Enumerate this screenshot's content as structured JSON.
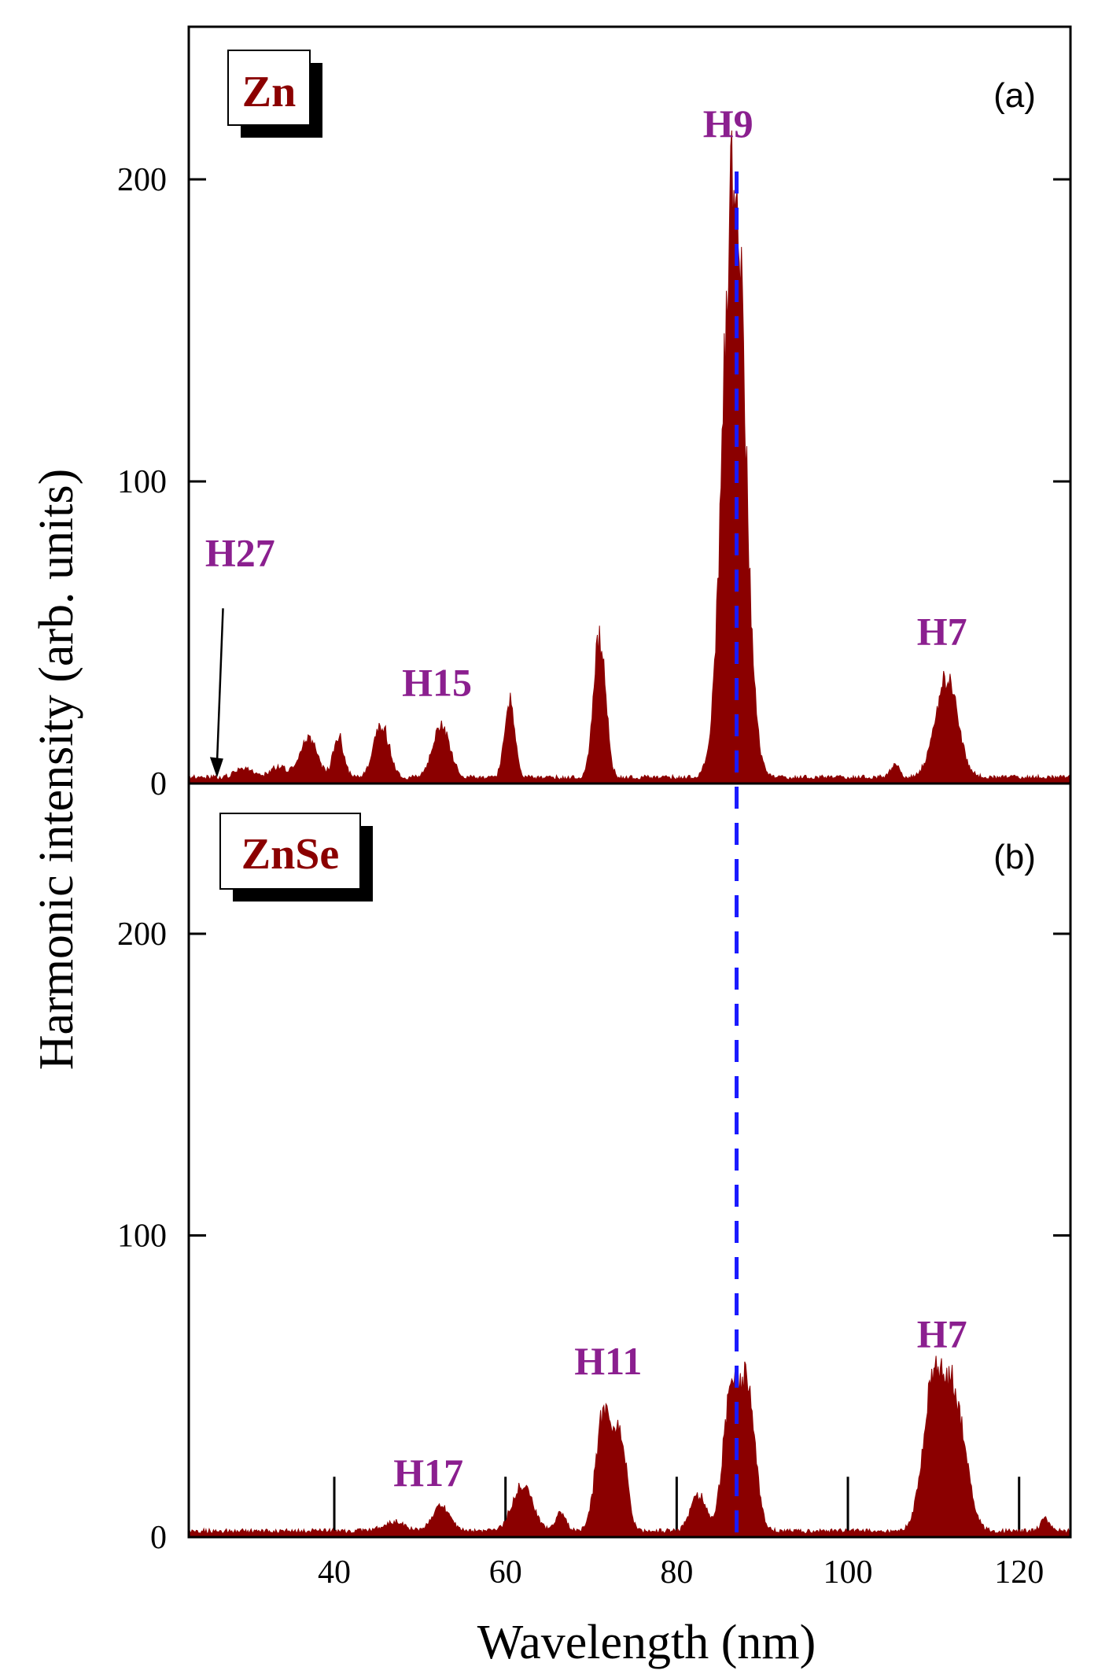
{
  "chart_data": {
    "type": "area",
    "xlabel": "Wavelength (nm)",
    "ylabel": "Harmonic intensity (arb. units)",
    "xlim": [
      23,
      126
    ],
    "x_ticks": [
      "40",
      "60",
      "80",
      "100",
      "120"
    ],
    "x_tick_values": [
      40,
      60,
      80,
      100,
      120
    ],
    "reference_line": {
      "x": 87,
      "style": "dashed",
      "color": "#1a1aff"
    },
    "fill_color": "#8b0000",
    "panels": [
      {
        "id": "a",
        "panel_letter": "(a)",
        "material": "Zn",
        "ylim": [
          0,
          250
        ],
        "y_ticks": [
          "0",
          "100",
          "200"
        ],
        "y_tick_values": [
          0,
          100,
          200
        ],
        "peaks": [
          {
            "x": 29.5,
            "height": 3,
            "width": 1.0
          },
          {
            "x": 33.5,
            "height": 3.5,
            "width": 0.9
          },
          {
            "x": 37.0,
            "height": 13,
            "width": 1.0
          },
          {
            "x": 40.5,
            "height": 14,
            "width": 0.6
          },
          {
            "x": 45.5,
            "height": 17,
            "width": 0.9
          },
          {
            "x": 52.5,
            "height": 17,
            "width": 1.0
          },
          {
            "x": 60.5,
            "height": 25,
            "width": 0.6
          },
          {
            "x": 71.0,
            "height": 46,
            "width": 0.7
          },
          {
            "x": 86.7,
            "height": 200,
            "width": 1.25
          },
          {
            "x": 111.5,
            "height": 33,
            "width": 1.3
          },
          {
            "x": 105.5,
            "height": 4,
            "width": 0.5
          }
        ],
        "annotations": [
          {
            "text": "H27",
            "x": 29,
            "y": 72
          },
          {
            "text": "H15",
            "x": 52,
            "y": 29
          },
          {
            "text": "H9",
            "x": 86,
            "y": 214
          },
          {
            "text": "H7",
            "x": 111,
            "y": 46
          }
        ],
        "arrow": {
          "from": [
            27.0,
            58
          ],
          "to": [
            26.3,
            2
          ]
        }
      },
      {
        "id": "b",
        "panel_letter": "(b)",
        "material": "ZnSe",
        "ylim": [
          0,
          250
        ],
        "y_ticks": [
          "0",
          "100",
          "200"
        ],
        "y_tick_values": [
          0,
          100,
          200
        ],
        "peaks": [
          {
            "x": 47.0,
            "height": 3,
            "width": 1.2
          },
          {
            "x": 52.5,
            "height": 8,
            "width": 1.0
          },
          {
            "x": 62.0,
            "height": 15,
            "width": 1.2
          },
          {
            "x": 66.5,
            "height": 6,
            "width": 0.6
          },
          {
            "x": 71.5,
            "height": 40,
            "width": 0.9
          },
          {
            "x": 73.5,
            "height": 30,
            "width": 0.7
          },
          {
            "x": 82.5,
            "height": 12,
            "width": 0.9
          },
          {
            "x": 86.3,
            "height": 43,
            "width": 0.9
          },
          {
            "x": 88.3,
            "height": 46,
            "width": 0.9
          },
          {
            "x": 110.0,
            "height": 46,
            "width": 1.2
          },
          {
            "x": 112.5,
            "height": 42,
            "width": 1.3
          },
          {
            "x": 123.0,
            "height": 4,
            "width": 0.5
          }
        ],
        "annotations": [
          {
            "text": "H17",
            "x": 51,
            "y": 17
          },
          {
            "text": "H11",
            "x": 72,
            "y": 54
          },
          {
            "text": "H7",
            "x": 111,
            "y": 63
          }
        ],
        "marker_lines": [
          40,
          60,
          80,
          100,
          120
        ],
        "marker_height": 20
      }
    ]
  }
}
